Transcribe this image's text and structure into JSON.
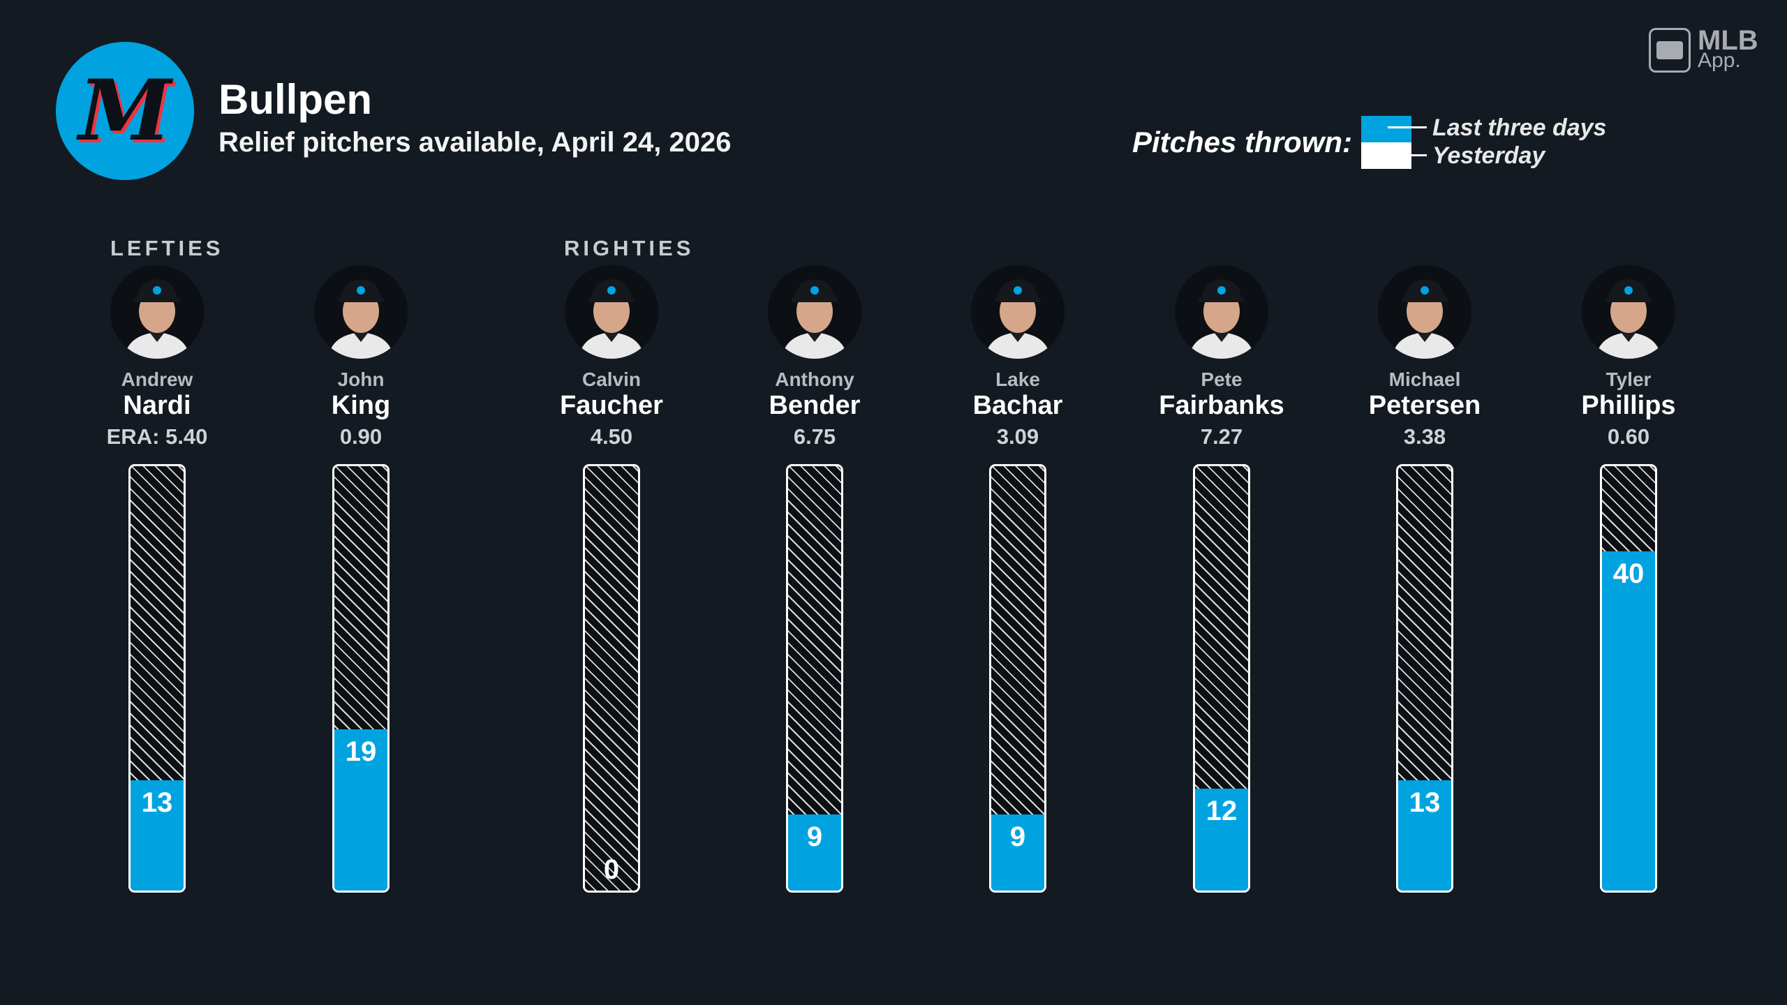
{
  "header": {
    "logo_text": "M",
    "title": "Bullpen",
    "subtitle": "Relief pitchers available, April 24, 2026"
  },
  "brand": {
    "line1": "MLB",
    "line2": "App."
  },
  "legend": {
    "label": "Pitches thrown:",
    "items": [
      {
        "label": "Last three days",
        "color": "#00a3e0"
      },
      {
        "label": "Yesterday",
        "color": "#ffffff"
      }
    ]
  },
  "groups": {
    "lefties": "LEFTIES",
    "righties": "RIGHTIES"
  },
  "colors": {
    "accent": "#00a3e0",
    "background": "#141a22"
  },
  "chart_data": {
    "type": "bar",
    "scale_max": 50,
    "series": [
      {
        "name": "Last three days",
        "values": [
          13,
          19,
          0,
          9,
          9,
          12,
          13,
          40
        ]
      },
      {
        "name": "Yesterday",
        "values": [
          0,
          0,
          0,
          0,
          0,
          0,
          0,
          0
        ]
      }
    ],
    "pitchers": [
      {
        "first": "Andrew",
        "last": "Nardi",
        "era": "ERA: 5.40",
        "group": "lefties",
        "pitches": 13
      },
      {
        "first": "John",
        "last": "King",
        "era": "0.90",
        "group": "lefties",
        "pitches": 19
      },
      {
        "first": "Calvin",
        "last": "Faucher",
        "era": "4.50",
        "group": "righties",
        "pitches": 0
      },
      {
        "first": "Anthony",
        "last": "Bender",
        "era": "6.75",
        "group": "righties",
        "pitches": 9
      },
      {
        "first": "Lake",
        "last": "Bachar",
        "era": "3.09",
        "group": "righties",
        "pitches": 9
      },
      {
        "first": "Pete",
        "last": "Fairbanks",
        "era": "7.27",
        "group": "righties",
        "pitches": 12
      },
      {
        "first": "Michael",
        "last": "Petersen",
        "era": "3.38",
        "group": "righties",
        "pitches": 13
      },
      {
        "first": "Tyler",
        "last": "Phillips",
        "era": "0.60",
        "group": "righties",
        "pitches": 40
      }
    ]
  }
}
